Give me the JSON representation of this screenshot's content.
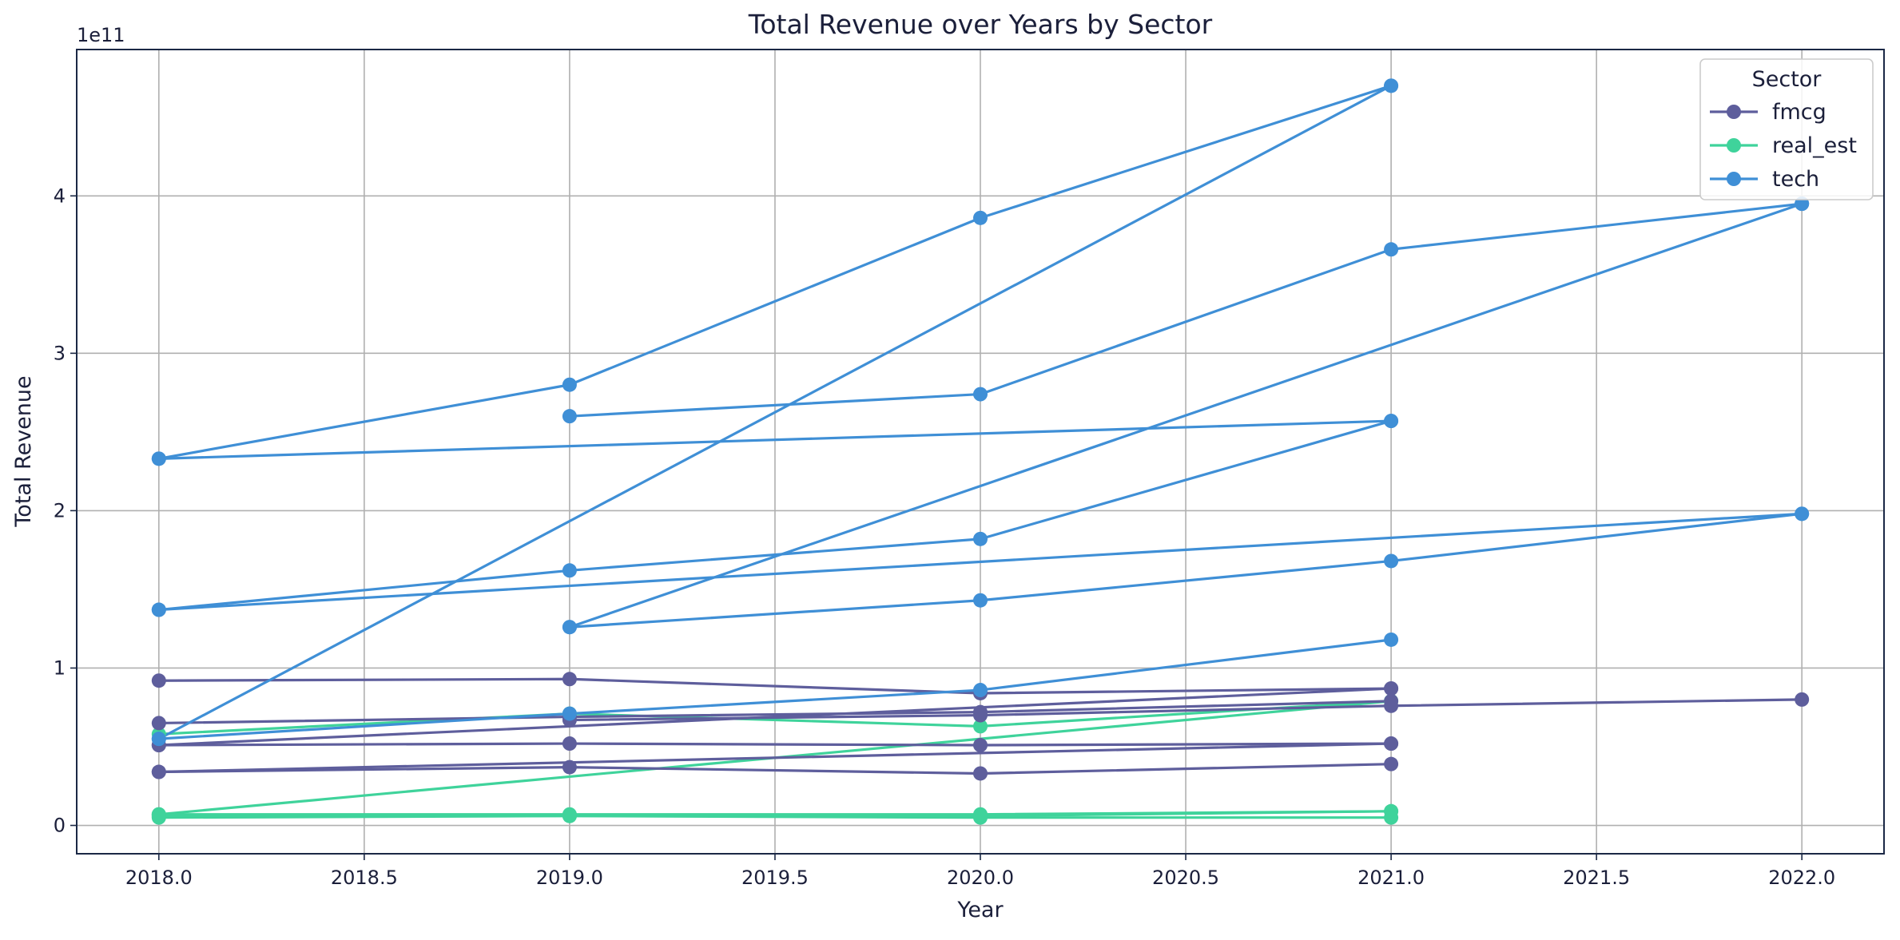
{
  "chart_data": {
    "type": "line",
    "title": "Total Revenue over Years by Sector",
    "xlabel": "Year",
    "ylabel": "Total Revenue",
    "y_scale_label": "1e11",
    "xlim": [
      2017.8,
      2022.2
    ],
    "ylim": [
      -0.18,
      4.93
    ],
    "x_ticks": [
      2018.0,
      2018.5,
      2019.0,
      2019.5,
      2020.0,
      2020.5,
      2021.0,
      2021.5,
      2022.0
    ],
    "x_tick_labels": [
      "2018.0",
      "2018.5",
      "2019.0",
      "2019.5",
      "2020.0",
      "2020.5",
      "2021.0",
      "2021.5",
      "2022.0"
    ],
    "y_ticks": [
      0,
      1,
      2,
      3,
      4
    ],
    "y_tick_labels": [
      "0",
      "1",
      "2",
      "3",
      "4"
    ],
    "grid": true,
    "legend": {
      "title": "Sector",
      "placement": "top-right",
      "entries": [
        {
          "name": "fmcg",
          "color": "#5e5e9c"
        },
        {
          "name": "real_est",
          "color": "#3fd39b"
        },
        {
          "name": "tech",
          "color": "#3f8fd6"
        }
      ]
    },
    "series": [
      {
        "sector": "fmcg",
        "x": [
          2018,
          2019,
          2020,
          2021
        ],
        "y": [
          0.92,
          0.93,
          0.84,
          0.87
        ]
      },
      {
        "sector": "fmcg",
        "x": [
          2018,
          2019,
          2020,
          2021
        ],
        "y": [
          0.65,
          0.69,
          0.72,
          0.79
        ]
      },
      {
        "sector": "fmcg",
        "x": [
          2018,
          2021
        ],
        "y": [
          0.51,
          0.87
        ]
      },
      {
        "sector": "fmcg",
        "x": [
          2018,
          2019,
          2020,
          2021
        ],
        "y": [
          0.51,
          0.52,
          0.51,
          0.52
        ]
      },
      {
        "sector": "fmcg",
        "x": [
          2019,
          2020,
          2021,
          2022
        ],
        "y": [
          0.67,
          0.7,
          0.76,
          0.8
        ]
      },
      {
        "sector": "fmcg",
        "x": [
          2018,
          2019,
          2020,
          2021
        ],
        "y": [
          0.34,
          0.37,
          0.33,
          0.39
        ]
      },
      {
        "sector": "fmcg",
        "x": [
          2018,
          2021
        ],
        "y": [
          0.34,
          0.52
        ]
      },
      {
        "sector": "real_est",
        "x": [
          2018,
          2019,
          2020,
          2021
        ],
        "y": [
          0.58,
          0.71,
          0.63,
          0.79
        ]
      },
      {
        "sector": "real_est",
        "x": [
          2018,
          2021
        ],
        "y": [
          0.07,
          0.79
        ]
      },
      {
        "sector": "real_est",
        "x": [
          2018,
          2019,
          2020,
          2021
        ],
        "y": [
          0.07,
          0.07,
          0.07,
          0.09
        ]
      },
      {
        "sector": "real_est",
        "x": [
          2018,
          2019,
          2020,
          2021
        ],
        "y": [
          0.05,
          0.06,
          0.05,
          0.05
        ]
      },
      {
        "sector": "real_est",
        "x": [
          2018,
          2019,
          2020,
          2021
        ],
        "y": [
          0.06,
          0.06,
          0.06,
          0.09
        ]
      },
      {
        "sector": "tech",
        "x": [
          2018,
          2019,
          2020,
          2021
        ],
        "y": [
          0.55,
          0.71,
          0.86,
          1.18
        ]
      },
      {
        "sector": "tech",
        "x": [
          2018,
          2021
        ],
        "y": [
          0.55,
          4.7
        ]
      },
      {
        "sector": "tech",
        "x": [
          2018,
          2019,
          2020,
          2021
        ],
        "y": [
          2.33,
          2.8,
          3.86,
          4.7
        ]
      },
      {
        "sector": "tech",
        "x": [
          2018,
          2021
        ],
        "y": [
          2.33,
          2.57
        ]
      },
      {
        "sector": "tech",
        "x": [
          2019,
          2020,
          2021,
          2022
        ],
        "y": [
          2.6,
          2.74,
          3.66,
          3.95
        ]
      },
      {
        "sector": "tech",
        "x": [
          2019,
          2022
        ],
        "y": [
          1.26,
          3.95
        ]
      },
      {
        "sector": "tech",
        "x": [
          2019,
          2020,
          2021,
          2022
        ],
        "y": [
          1.26,
          1.43,
          1.68,
          1.98
        ]
      },
      {
        "sector": "tech",
        "x": [
          2018,
          2019,
          2020,
          2021
        ],
        "y": [
          1.37,
          1.62,
          1.82,
          2.57
        ]
      },
      {
        "sector": "tech",
        "x": [
          2018,
          2022
        ],
        "y": [
          1.37,
          1.98
        ]
      }
    ]
  }
}
